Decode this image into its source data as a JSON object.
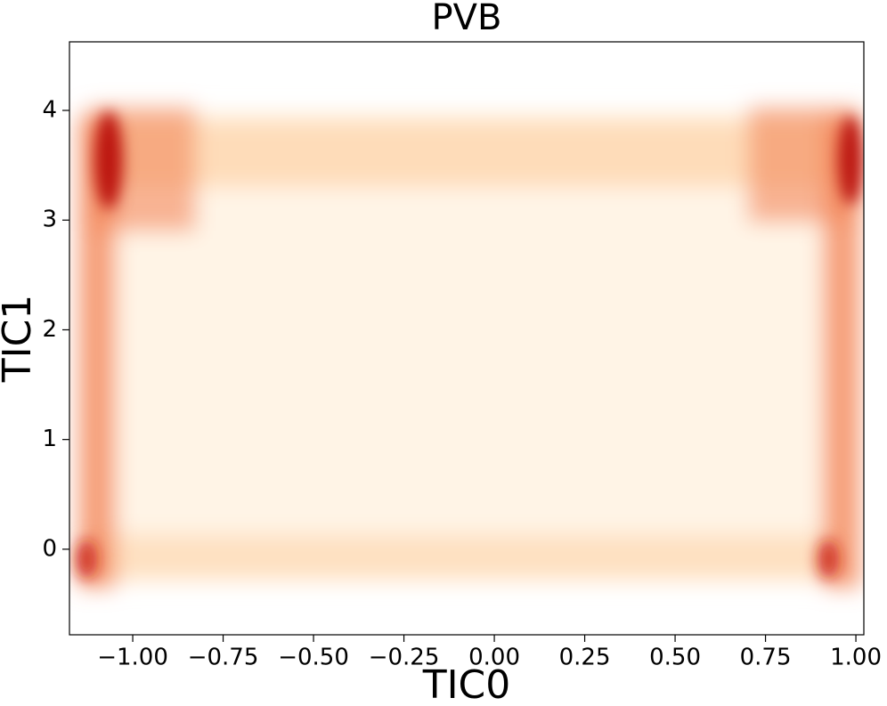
{
  "chart_data": {
    "type": "hist2d",
    "title": "PVB",
    "xlabel": "TIC0",
    "ylabel": "TIC1",
    "xlim": [
      -1.175,
      1.022
    ],
    "ylim": [
      -0.78,
      4.625
    ],
    "xticks": [
      {
        "value": -1,
        "label": "−1.00"
      },
      {
        "value": -0.75,
        "label": "−0.75"
      },
      {
        "value": -0.5,
        "label": "−0.50"
      },
      {
        "value": -0.25,
        "label": "−0.25"
      },
      {
        "value": 0,
        "label": "0.00"
      },
      {
        "value": 0.25,
        "label": "0.25"
      },
      {
        "value": 0.5,
        "label": "0.50"
      },
      {
        "value": 0.75,
        "label": "0.75"
      },
      {
        "value": 1,
        "label": "1.00"
      }
    ],
    "yticks": [
      0,
      1,
      2,
      3,
      4
    ],
    "cmap": "OrRd"
  }
}
